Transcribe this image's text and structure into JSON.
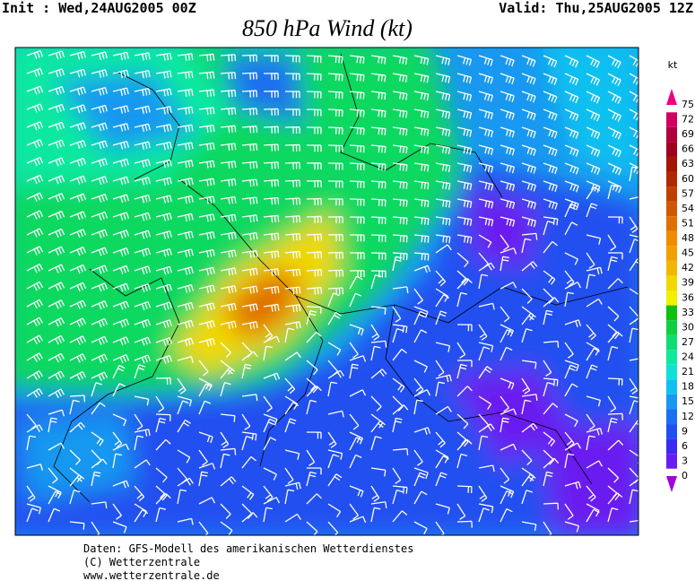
{
  "header": {
    "init": "Init : Wed,24AUG2005 00Z",
    "valid": "Valid: Thu,25AUG2005 12Z",
    "title": "850 hPa Wind (kt)"
  },
  "colorbar": {
    "unit": "kt",
    "levels": [
      0,
      3,
      6,
      9,
      12,
      15,
      18,
      21,
      24,
      27,
      30,
      33,
      36,
      39,
      42,
      45,
      48,
      51,
      54,
      57,
      60,
      63,
      66,
      69,
      72,
      75
    ],
    "colors": [
      "#a000e0",
      "#6a1cf0",
      "#3a2cf0",
      "#2050f0",
      "#1a70f0",
      "#1898f0",
      "#10c0f0",
      "#10e0d8",
      "#10e8a0",
      "#10dc70",
      "#10d040",
      "#10c010",
      "#f0f000",
      "#f0d800",
      "#f0b800",
      "#f0a000",
      "#f08c00",
      "#e07000",
      "#d05800",
      "#c04000",
      "#b02800",
      "#a01800",
      "#a00020",
      "#b00040",
      "#d00060",
      "#f00080"
    ]
  },
  "footer": [
    "Daten: GFS-Modell des amerikanischen Wetterdienstes",
    "(C) Wetterzentrale",
    "www.wetterzentrale.de"
  ]
}
